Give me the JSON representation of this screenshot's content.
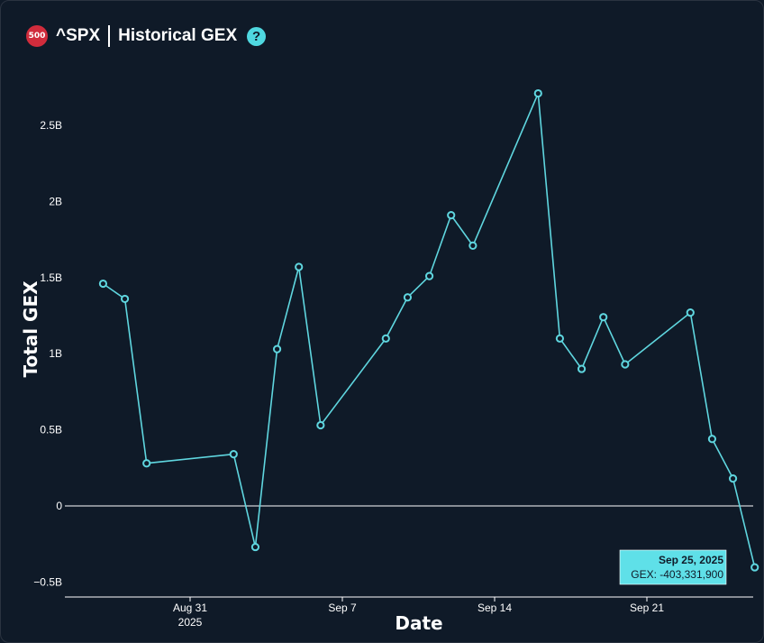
{
  "header": {
    "badge": "500",
    "ticker": "^SPX",
    "title": "Historical GEX",
    "help": "?"
  },
  "colors": {
    "background": "#0f1a28",
    "line": "#5fd6df",
    "text": "#ffffff",
    "tooltip_bg": "#5fe0e8",
    "badge": "#d12c3c"
  },
  "chart_data": {
    "type": "line",
    "xlabel": "Date",
    "ylabel": "Total GEX",
    "ylim": [
      -600000000,
      3000000000
    ],
    "y_ticks": [
      {
        "value": -500000000,
        "label": "−0.5B"
      },
      {
        "value": 0,
        "label": "0"
      },
      {
        "value": 500000000,
        "label": "0.5B"
      },
      {
        "value": 1000000000,
        "label": "1B"
      },
      {
        "value": 1500000000,
        "label": "1.5B"
      },
      {
        "value": 2000000000,
        "label": "2B"
      },
      {
        "value": 2500000000,
        "label": "2.5B"
      }
    ],
    "x_ticks": [
      {
        "date": "2025-08-31",
        "label": "Aug 31",
        "sublabel": "2025"
      },
      {
        "date": "2025-09-07",
        "label": "Sep 7",
        "sublabel": ""
      },
      {
        "date": "2025-09-14",
        "label": "Sep 14",
        "sublabel": ""
      },
      {
        "date": "2025-09-21",
        "label": "Sep 21",
        "sublabel": ""
      }
    ],
    "grid": false,
    "zero_line": true,
    "series": [
      {
        "points": [
          {
            "x": "2025-08-27",
            "y": 1460000000
          },
          {
            "x": "2025-08-28",
            "y": 1360000000
          },
          {
            "x": "2025-08-29",
            "y": 280000000
          },
          {
            "x": "2025-09-02",
            "y": 340000000
          },
          {
            "x": "2025-09-03",
            "y": -270000000
          },
          {
            "x": "2025-09-04",
            "y": 1030000000
          },
          {
            "x": "2025-09-05",
            "y": 1570000000
          },
          {
            "x": "2025-09-06",
            "y": 530000000
          },
          {
            "x": "2025-09-09",
            "y": 1100000000
          },
          {
            "x": "2025-09-10",
            "y": 1370000000
          },
          {
            "x": "2025-09-11",
            "y": 1510000000
          },
          {
            "x": "2025-09-12",
            "y": 1910000000
          },
          {
            "x": "2025-09-13",
            "y": 1710000000
          },
          {
            "x": "2025-09-16",
            "y": 2710000000
          },
          {
            "x": "2025-09-17",
            "y": 1100000000
          },
          {
            "x": "2025-09-18",
            "y": 900000000
          },
          {
            "x": "2025-09-19",
            "y": 1240000000
          },
          {
            "x": "2025-09-20",
            "y": 930000000
          },
          {
            "x": "2025-09-23",
            "y": 1270000000
          },
          {
            "x": "2025-09-24",
            "y": 440000000
          },
          {
            "x": "2025-09-24T23:00",
            "y": 180000000
          },
          {
            "x": "2025-09-25T23:00",
            "y": -403331900
          }
        ]
      }
    ],
    "tooltip": {
      "date": "Sep 25, 2025",
      "value": "GEX: -403,331,900"
    }
  }
}
